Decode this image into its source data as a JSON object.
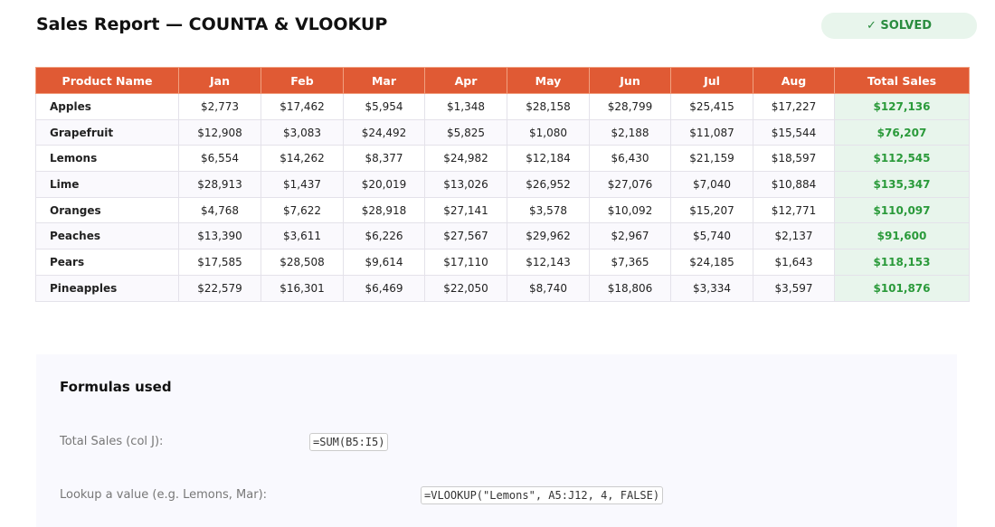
{
  "header": {
    "title": "Sales Report — COUNTA & VLOOKUP",
    "badge": "✓ SOLVED"
  },
  "table": {
    "columns": [
      "Product Name",
      "Jan",
      "Feb",
      "Mar",
      "Apr",
      "May",
      "Jun",
      "Jul",
      "Aug",
      "Total Sales"
    ],
    "rows": [
      [
        "Apples",
        "$2,773",
        "$17,462",
        "$5,954",
        "$1,348",
        "$28,158",
        "$28,799",
        "$25,415",
        "$17,227",
        "$127,136"
      ],
      [
        "Grapefruit",
        "$12,908",
        "$3,083",
        "$24,492",
        "$5,825",
        "$1,080",
        "$2,188",
        "$11,087",
        "$15,544",
        "$76,207"
      ],
      [
        "Lemons",
        "$6,554",
        "$14,262",
        "$8,377",
        "$24,982",
        "$12,184",
        "$6,430",
        "$21,159",
        "$18,597",
        "$112,545"
      ],
      [
        "Lime",
        "$28,913",
        "$1,437",
        "$20,019",
        "$13,026",
        "$26,952",
        "$27,076",
        "$7,040",
        "$10,884",
        "$135,347"
      ],
      [
        "Oranges",
        "$4,768",
        "$7,622",
        "$28,918",
        "$27,141",
        "$3,578",
        "$10,092",
        "$15,207",
        "$12,771",
        "$110,097"
      ],
      [
        "Peaches",
        "$13,390",
        "$3,611",
        "$6,226",
        "$27,567",
        "$29,962",
        "$2,967",
        "$5,740",
        "$2,137",
        "$91,600"
      ],
      [
        "Pears",
        "$17,585",
        "$28,508",
        "$9,614",
        "$17,110",
        "$12,143",
        "$7,365",
        "$24,185",
        "$1,643",
        "$118,153"
      ],
      [
        "Pineapples",
        "$22,579",
        "$16,301",
        "$6,469",
        "$22,050",
        "$8,740",
        "$18,806",
        "$3,334",
        "$3,597",
        "$101,876"
      ]
    ]
  },
  "formulas": {
    "title": "Formulas used",
    "items": [
      {
        "label": "Total Sales (col J):",
        "code": "=SUM(B5:I5)"
      },
      {
        "label": "Lookup a value (e.g. Lemons, Mar):",
        "code": "=VLOOKUP(\"Lemons\", A5:J12, 4, FALSE)"
      }
    ]
  }
}
